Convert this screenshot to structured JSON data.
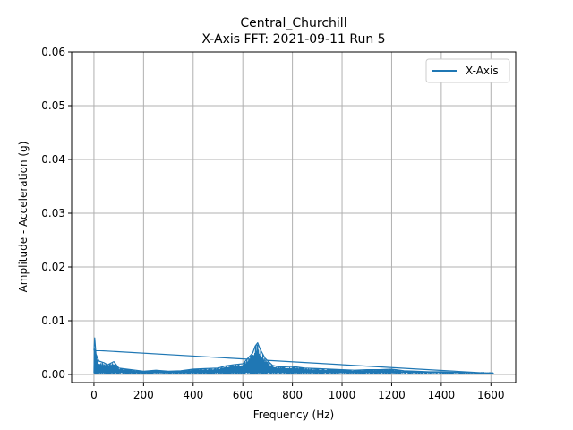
{
  "chart_data": {
    "type": "line",
    "title": "Central_Churchill",
    "subtitle": "X-Axis FFT: 2021-09-11 Run 5",
    "xlabel": "Frequency (Hz)",
    "ylabel": "Amplitude - Acceleration (g)",
    "xlim": [
      -90,
      1700
    ],
    "ylim": [
      -0.0015,
      0.06
    ],
    "xticks": [
      "0",
      "200",
      "400",
      "600",
      "800",
      "1000",
      "1200",
      "1400",
      "1600"
    ],
    "xtick_values": [
      0,
      200,
      400,
      600,
      800,
      1000,
      1200,
      1400,
      1600
    ],
    "yticks": [
      "0.00",
      "0.01",
      "0.02",
      "0.03",
      "0.04",
      "0.05",
      "0.06"
    ],
    "ytick_values": [
      0,
      0.01,
      0.02,
      0.03,
      0.04,
      0.05,
      0.06
    ],
    "grid": true,
    "legend_position": "top-right",
    "colors": {
      "series": "#1f77b4",
      "grid": "#b0b0b0"
    },
    "series": [
      {
        "name": "X-Axis",
        "x": [
          0,
          3,
          8,
          20,
          40,
          55,
          80,
          100,
          150,
          200,
          250,
          300,
          350,
          400,
          450,
          500,
          530,
          560,
          600,
          620,
          640,
          650,
          660,
          670,
          690,
          720,
          750,
          800,
          850,
          900,
          950,
          1000,
          1050,
          1100,
          1150,
          1200,
          1250,
          1300,
          1350,
          1400,
          1450,
          1500,
          1550,
          1600,
          1610
        ],
        "y": [
          0.0045,
          0.0068,
          0.0038,
          0.0025,
          0.0022,
          0.0018,
          0.0024,
          0.0012,
          0.0009,
          0.0006,
          0.0008,
          0.0006,
          0.0007,
          0.001,
          0.0011,
          0.0012,
          0.0016,
          0.0018,
          0.002,
          0.003,
          0.004,
          0.0053,
          0.0059,
          0.0047,
          0.003,
          0.0017,
          0.0014,
          0.0015,
          0.0012,
          0.0011,
          0.001,
          0.0009,
          0.0008,
          0.0009,
          0.0009,
          0.001,
          0.0007,
          0.0006,
          0.0005,
          0.0005,
          0.0004,
          0.0004,
          0.0003,
          0.0003,
          0.0003
        ],
        "floor": 0.0001
      }
    ]
  }
}
